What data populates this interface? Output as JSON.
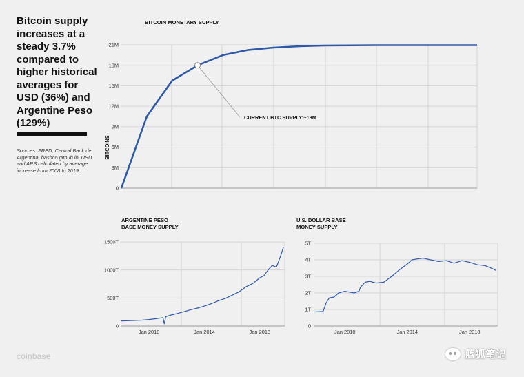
{
  "headline": "Bitcoin supply increases at a steady 3.7% compared to higher historical averages for USD (36%) and Argentine Peso (129%)",
  "sources": "Sources: FRED, Central Bank de Argentina, bashco.github.io. USD and ARS calculated by average increase from 2008 to 2019",
  "brand": "coinbase",
  "watermark": "蓝狐笔记",
  "colors": {
    "line": "#2f58a8",
    "grid": "#d4d4d4",
    "background": "#f0f0f0"
  },
  "chart_data": [
    {
      "type": "line",
      "title": "BITCOIN MONETARY SUPPLY",
      "ylabel": "BITCOINS",
      "xlabel": "",
      "x_ticks": [],
      "y_ticks": [
        "0",
        "3M",
        "6M",
        "9M",
        "12M",
        "15M",
        "18M",
        "21M"
      ],
      "ylim": [
        0,
        21000000
      ],
      "xlim": [
        0,
        7
      ],
      "grid": true,
      "series": [
        {
          "x": [
            0,
            0.5,
            1,
            1.5,
            2,
            2.5,
            3,
            3.5,
            4,
            5,
            6,
            7
          ],
          "values": [
            0,
            10500000,
            15750000,
            18000000,
            19500000,
            20250000,
            20600000,
            20800000,
            20900000,
            20950000,
            20950000,
            20950000
          ]
        }
      ],
      "annotation": {
        "text": "CURRENT BTC SUPPLY:~18M",
        "x": 1.5,
        "y": 18000000
      }
    },
    {
      "type": "line",
      "title": "ARGENTINE PESO BASE MONEY SUPPLY",
      "title_lines": [
        "ARGENTINE PESO",
        "BASE MONEY SUPPLY"
      ],
      "xlabel": "",
      "ylabel": "",
      "x_ticks": [
        {
          "label": "Jan 2010",
          "x": 2010
        },
        {
          "label": "Jan 2014",
          "x": 2014
        },
        {
          "label": "Jan 2018",
          "x": 2018
        }
      ],
      "y_ticks": [
        "0",
        "500T",
        "1000T",
        "1500T"
      ],
      "ylim": [
        0,
        1500
      ],
      "xlim": [
        2008,
        2019.8
      ],
      "grid": true,
      "series": [
        {
          "x": [
            2008,
            2008.5,
            2009,
            2009.5,
            2010,
            2010.5,
            2011,
            2011.1,
            2011.2,
            2011.5,
            2012,
            2012.5,
            2013,
            2013.5,
            2014,
            2014.5,
            2015,
            2015.5,
            2016,
            2016.5,
            2017,
            2017.5,
            2018,
            2018.3,
            2018.6,
            2018.9,
            2019.2,
            2019.5,
            2019.7
          ],
          "values": [
            90,
            95,
            100,
            105,
            115,
            130,
            150,
            40,
            165,
            190,
            220,
            255,
            290,
            320,
            355,
            400,
            450,
            490,
            550,
            610,
            700,
            760,
            860,
            900,
            1000,
            1080,
            1050,
            1250,
            1400
          ]
        }
      ]
    },
    {
      "type": "line",
      "title": "U.S. DOLLAR BASE MONEY SUPPLY",
      "title_lines": [
        "U.S. DOLLAR BASE",
        "MONEY SUPPLY"
      ],
      "xlabel": "",
      "ylabel": "",
      "x_ticks": [
        {
          "label": "Jan 2010",
          "x": 2010
        },
        {
          "label": "Jan 2014",
          "x": 2014
        },
        {
          "label": "Jan 2018",
          "x": 2018
        }
      ],
      "y_ticks": [
        "0",
        "1T",
        "2T",
        "3T",
        "4T",
        "5T"
      ],
      "ylim": [
        0,
        5
      ],
      "xlim": [
        2008,
        2019.8
      ],
      "grid": true,
      "series": [
        {
          "x": [
            2008,
            2008.6,
            2008.8,
            2009,
            2009.3,
            2009.6,
            2009.8,
            2010,
            2010.3,
            2010.6,
            2010.9,
            2011,
            2011.3,
            2011.6,
            2012,
            2012.5,
            2013,
            2013.5,
            2014,
            2014.3,
            2014.6,
            2015,
            2015.5,
            2016,
            2016.5,
            2017,
            2017.5,
            2018,
            2018.5,
            2019,
            2019.5,
            2019.7
          ],
          "values": [
            0.85,
            0.88,
            1.4,
            1.7,
            1.75,
            2.0,
            2.05,
            2.1,
            2.05,
            2.0,
            2.1,
            2.35,
            2.65,
            2.7,
            2.6,
            2.65,
            3.0,
            3.4,
            3.75,
            4.0,
            4.05,
            4.1,
            4.0,
            3.9,
            3.95,
            3.8,
            3.95,
            3.85,
            3.7,
            3.65,
            3.45,
            3.35
          ]
        }
      ]
    }
  ]
}
